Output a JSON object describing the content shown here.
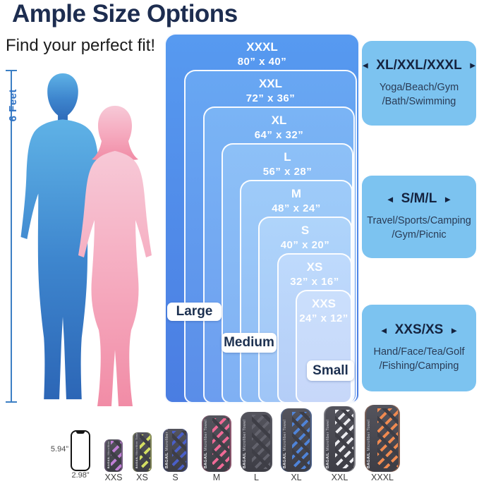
{
  "header": {
    "title": "Ample Size Options",
    "subtitle": "Find your perfect fit!"
  },
  "figures": {
    "height_label": "6 Feet"
  },
  "size_chart": {
    "sizes": [
      {
        "name": "XXXL",
        "dimensions": "80” x 40”"
      },
      {
        "name": "XXL",
        "dimensions": "72” x 36”"
      },
      {
        "name": "XL",
        "dimensions": "64” x 32”"
      },
      {
        "name": "L",
        "dimensions": "56” x 28”"
      },
      {
        "name": "M",
        "dimensions": "48” x 24”"
      },
      {
        "name": "S",
        "dimensions": "40” x 20”"
      },
      {
        "name": "XS",
        "dimensions": "32” x 16”"
      },
      {
        "name": "XXS",
        "dimensions": "24” x 12”"
      }
    ],
    "group_labels": [
      "Large",
      "Medium",
      "Small"
    ]
  },
  "use_panels": [
    {
      "arrow_left": "◄",
      "arrow_right": "►",
      "title": "XL/XXL/XXXL",
      "lines": [
        "Yoga/Beach/Gym",
        "/Bath/Swimming"
      ]
    },
    {
      "arrow_left": "◄",
      "arrow_right": "►",
      "title": "S/M/L",
      "lines": [
        "Travel/Sports/Camping",
        "/Gym/Picnic"
      ]
    },
    {
      "arrow_left": "◄",
      "arrow_right": "►",
      "title": "XXS/XS",
      "lines": [
        "Hand/Face/Tea/Golf",
        "/Fishing/Camping"
      ]
    }
  ],
  "phone": {
    "height_label": "5.94”",
    "width_label": "2.98”"
  },
  "towels": [
    {
      "size": "XXS",
      "stripe_color": "#c07fd6",
      "brand": "BAGAIL",
      "brand_sub": "Microfiber Towel"
    },
    {
      "size": "XS",
      "stripe_color": "#d3de62",
      "brand": "BAGAIL",
      "brand_sub": "Microfiber Towel"
    },
    {
      "size": "S",
      "stripe_color": "#4a5fc9",
      "brand": "BAGAIL",
      "brand_sub": "Microfiber Towel"
    },
    {
      "size": "M",
      "stripe_color": "#ef6a96",
      "brand": "BAGAIL",
      "brand_sub": "Microfiber Towel"
    },
    {
      "size": "L",
      "stripe_color": "#63636d",
      "brand": "BAGAIL",
      "brand_sub": "Microfiber Towel"
    },
    {
      "size": "XL",
      "stripe_color": "#4f83d8",
      "brand": "BAGAIL",
      "brand_sub": "Microfiber Towel"
    },
    {
      "size": "XXL",
      "stripe_color": "#ececf0",
      "brand": "BAGAIL",
      "brand_sub": "Microfiber Towel"
    },
    {
      "size": "XXXL",
      "stripe_color": "#f08a50",
      "brand": "BAGAIL",
      "brand_sub": "Microfiber Towel"
    }
  ]
}
